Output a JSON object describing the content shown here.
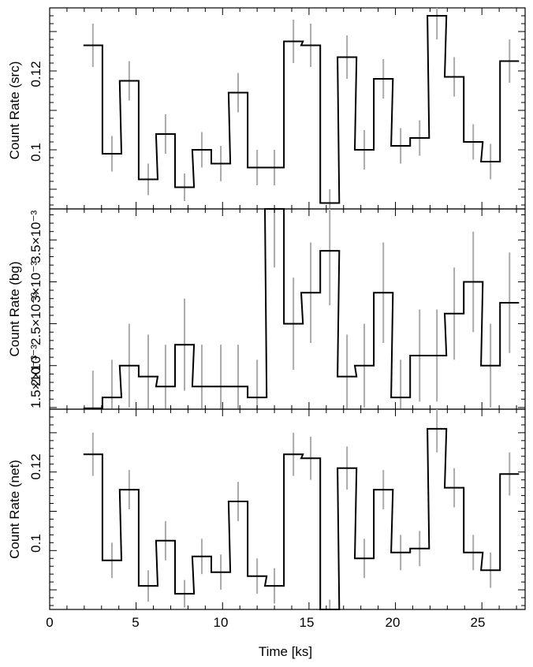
{
  "chart_data": [
    {
      "type": "line",
      "ylabel": "Count Rate (src)",
      "xlim": [
        0,
        27.5
      ],
      "ylim": [
        0.085,
        0.136
      ],
      "x": [
        2.5,
        3.6,
        4.6,
        5.7,
        6.7,
        7.8,
        8.8,
        9.9,
        10.9,
        12.0,
        13.0,
        14.1,
        15.1,
        16.2,
        17.2,
        18.2,
        19.3,
        20.3,
        21.4,
        22.4,
        23.4,
        24.5,
        25.5,
        26.6
      ],
      "y": [
        0.1265,
        0.099,
        0.1175,
        0.0925,
        0.104,
        0.0905,
        0.1,
        0.0965,
        0.1145,
        0.0955,
        0.0955,
        0.1275,
        0.1265,
        0.0865,
        0.1235,
        0.1,
        0.118,
        0.101,
        0.103,
        0.134,
        0.1185,
        0.102,
        0.097,
        0.1225
      ],
      "yerr": [
        0.0055,
        0.0045,
        0.005,
        0.004,
        0.005,
        0.0035,
        0.0045,
        0.0045,
        0.005,
        0.0045,
        0.0045,
        0.0055,
        0.0055,
        0.0035,
        0.0055,
        0.005,
        0.005,
        0.0045,
        0.0045,
        0.006,
        0.005,
        0.0045,
        0.0045,
        0.0055
      ],
      "yticks": [
        "0.1",
        "0.12"
      ]
    },
    {
      "type": "line",
      "ylabel": "Count Rate (bg)",
      "xlim": [
        0,
        27.5
      ],
      "ylim": [
        0.00148,
        0.00387
      ],
      "x": [
        2.5,
        3.6,
        4.6,
        5.7,
        6.7,
        7.8,
        8.8,
        9.9,
        10.9,
        12.0,
        13.0,
        14.1,
        15.1,
        16.2,
        17.2,
        18.2,
        19.3,
        20.3,
        21.4,
        22.4,
        23.4,
        24.5,
        25.5,
        26.6
      ],
      "y": [
        0.00149,
        0.00162,
        0.002,
        0.00187,
        0.00175,
        0.00225,
        0.00175,
        0.00175,
        0.00175,
        0.00162,
        0.00387,
        0.0025,
        0.00287,
        0.00337,
        0.00187,
        0.002,
        0.00287,
        0.00162,
        0.00212,
        0.00212,
        0.00262,
        0.003,
        0.002,
        0.00275
      ],
      "yerr": [
        0.00045,
        0.00045,
        0.0005,
        0.0005,
        0.0005,
        0.00055,
        0.0005,
        0.0005,
        0.0005,
        0.00045,
        0.0007,
        0.00055,
        0.0006,
        0.00065,
        0.0005,
        0.0005,
        0.0006,
        0.00045,
        0.00055,
        0.00055,
        0.00055,
        0.0006,
        0.0005,
        0.0006
      ],
      "yticks": [
        "1.5×10⁻³",
        "2×10⁻³",
        "2.5×10⁻³",
        "3×10⁻³",
        "3.5×10⁻³"
      ]
    },
    {
      "type": "line",
      "ylabel": "Count Rate (net)",
      "xlabel": "Time [ks]",
      "xlim": [
        0,
        27.5
      ],
      "ylim": [
        0.085,
        0.136
      ],
      "x": [
        2.5,
        3.6,
        4.6,
        5.7,
        6.7,
        7.8,
        8.8,
        9.9,
        10.9,
        12.0,
        13.0,
        14.1,
        15.1,
        16.2,
        17.2,
        18.2,
        19.3,
        20.3,
        21.4,
        22.4,
        23.4,
        24.5,
        25.5,
        26.6
      ],
      "y": [
        0.1245,
        0.0975,
        0.1155,
        0.091,
        0.1025,
        0.089,
        0.0985,
        0.0945,
        0.1125,
        0.0935,
        0.091,
        0.1245,
        0.1235,
        0.084,
        0.121,
        0.098,
        0.1155,
        0.0995,
        0.1005,
        0.131,
        0.116,
        0.0995,
        0.095,
        0.1195
      ],
      "yerr": [
        0.0055,
        0.0045,
        0.005,
        0.004,
        0.005,
        0.0035,
        0.0045,
        0.0045,
        0.005,
        0.0045,
        0.0045,
        0.0055,
        0.0055,
        0.0035,
        0.0055,
        0.005,
        0.005,
        0.0045,
        0.0045,
        0.006,
        0.005,
        0.0045,
        0.0045,
        0.0055
      ],
      "yticks": [
        "0.1",
        "0.12"
      ],
      "xticks": [
        "0",
        "5",
        "10",
        "15",
        "20",
        "25"
      ]
    }
  ]
}
